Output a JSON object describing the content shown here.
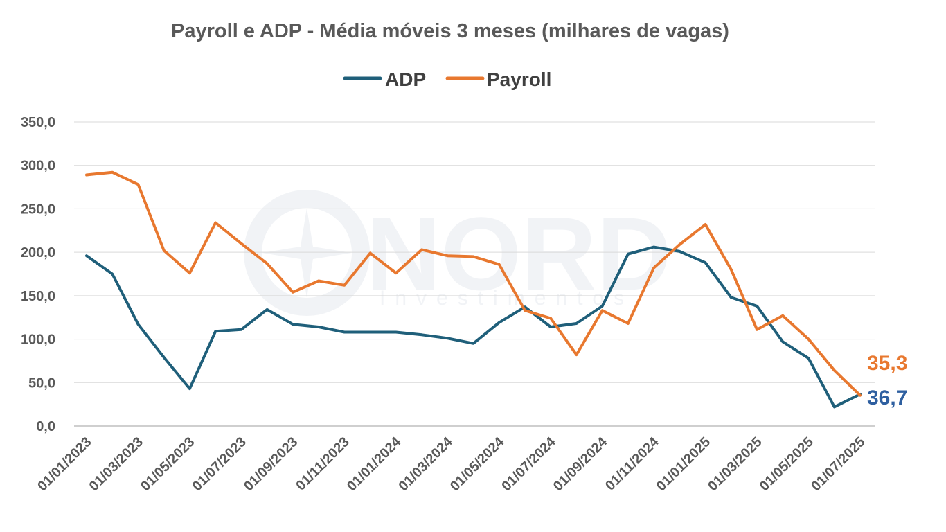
{
  "colors": {
    "adp": "#1f5f7a",
    "payroll": "#e8782f",
    "adp_label": "#2e5fa0",
    "payroll_label": "#e8782f"
  },
  "watermark": {
    "name": "NORD",
    "subtitle": "Investimentos"
  },
  "chart_data": {
    "type": "line",
    "title": "Payroll e ADP - Média móveis 3 meses (milhares de vagas)",
    "legend": {
      "position": "top",
      "entries": [
        "ADP",
        "Payroll"
      ]
    },
    "grid": true,
    "ylim": [
      0,
      350
    ],
    "yticks": [
      "350,0",
      "300,0",
      "250,0",
      "200,0",
      "150,0",
      "100,0",
      "50,0",
      "0,0"
    ],
    "xtick_labels": [
      "01/01/2023",
      "01/03/2023",
      "01/05/2023",
      "01/07/2023",
      "01/09/2023",
      "01/11/2023",
      "01/01/2024",
      "01/03/2024",
      "01/05/2024",
      "01/07/2024",
      "01/09/2024",
      "01/11/2024",
      "01/01/2025",
      "01/03/2025",
      "01/05/2025",
      "01/07/2025"
    ],
    "x": [
      "01/01/2023",
      "01/02/2023",
      "01/03/2023",
      "01/04/2023",
      "01/05/2023",
      "01/06/2023",
      "01/07/2023",
      "01/08/2023",
      "01/09/2023",
      "01/10/2023",
      "01/11/2023",
      "01/12/2023",
      "01/01/2024",
      "01/02/2024",
      "01/03/2024",
      "01/04/2024",
      "01/05/2024",
      "01/06/2024",
      "01/07/2024",
      "01/08/2024",
      "01/09/2024",
      "01/10/2024",
      "01/11/2024",
      "01/12/2024",
      "01/01/2025",
      "01/02/2025",
      "01/03/2025",
      "01/04/2025",
      "01/05/2025",
      "01/06/2025",
      "01/07/2025"
    ],
    "series": [
      {
        "name": "ADP",
        "values": [
          196,
          175,
          117,
          79,
          43,
          109,
          111,
          134,
          117,
          114,
          108,
          108,
          108,
          105,
          101,
          95,
          119,
          137,
          114,
          118,
          138,
          198,
          206,
          201,
          188,
          148,
          138,
          97,
          78,
          22,
          36.7
        ]
      },
      {
        "name": "Payroll",
        "values": [
          289,
          292,
          278,
          202,
          176,
          234,
          210,
          187,
          154,
          167,
          162,
          199,
          176,
          203,
          196,
          195,
          186,
          133,
          124,
          82,
          133,
          118,
          182,
          209,
          232,
          180,
          111,
          127,
          100,
          64,
          35.3
        ]
      }
    ],
    "end_labels": {
      "ADP": "36,7",
      "Payroll": "35,3"
    }
  }
}
